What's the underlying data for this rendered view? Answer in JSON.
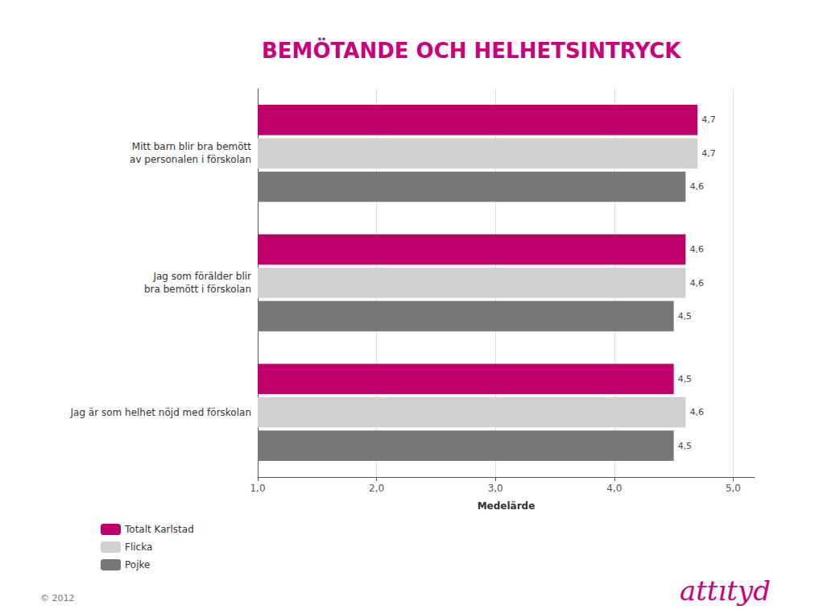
{
  "chart_data": {
    "type": "bar",
    "orientation": "horizontal",
    "title": "BEMÖTANDE OCH HELHETSINTRYCK",
    "title_color": "#cc007a",
    "categories": [
      "Jag är som helhet nöjd med förskolan",
      "Jag som förälder blir\nbra bemött i förskolan",
      "Mitt barn blir bra bemött\nav personalen i förskolan"
    ],
    "series": [
      {
        "name": "Totalt Karlstad",
        "color": "#c0006a",
        "values": [
          4.5,
          4.6,
          4.7
        ],
        "value_labels": [
          "4,5",
          "4,6",
          "4,7"
        ]
      },
      {
        "name": "Flicka",
        "color": "#d0d0d0",
        "values": [
          4.6,
          4.6,
          4.7
        ],
        "value_labels": [
          "4,6",
          "4,6",
          "4,7"
        ]
      },
      {
        "name": "Pojke",
        "color": "#777777",
        "values": [
          4.5,
          4.5,
          4.6
        ],
        "value_labels": [
          "4,5",
          "4,5",
          "4,6"
        ]
      }
    ],
    "xlabel": "Medelärde",
    "xlim": [
      1.0,
      5.18
    ],
    "xticks": [
      {
        "value": 1.0,
        "label": "1,0"
      },
      {
        "value": 2.0,
        "label": "2,0"
      },
      {
        "value": 3.0,
        "label": "3,0"
      },
      {
        "value": 4.0,
        "label": "4,0"
      },
      {
        "value": 5.0,
        "label": "5,0"
      }
    ],
    "grid": true,
    "legend": "bottom-left",
    "data_labels": true,
    "annotations": [
      "© 2012",
      "attıtyd"
    ]
  }
}
